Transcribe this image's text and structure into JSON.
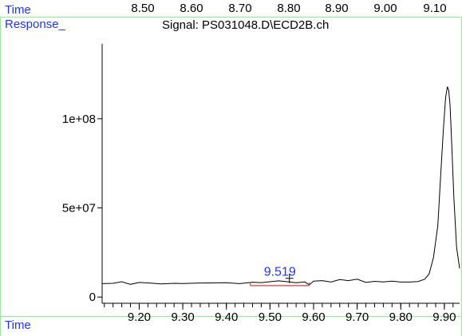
{
  "header": {
    "time_label": "Time",
    "response_label": "Response_",
    "top_time_ticks": [
      "8.50",
      "8.60",
      "8.70",
      "8.80",
      "8.90",
      "9.00",
      "9.10"
    ]
  },
  "footer": {
    "time_label": "Time"
  },
  "chart_data": {
    "type": "line",
    "title": "Signal: PS031048.D\\ECD2B.ch",
    "xlabel": "Time",
    "ylabel": "Response_",
    "xlim": [
      9.115,
      9.935
    ],
    "ylim": [
      -3500000,
      142000000
    ],
    "x_ticks": [
      9.2,
      9.3,
      9.4,
      9.5,
      9.6,
      9.7,
      9.8,
      9.9
    ],
    "x_tick_labels": [
      "9.20",
      "9.30",
      "9.40",
      "9.50",
      "9.60",
      "9.70",
      "9.80",
      "9.90"
    ],
    "y_ticks": [
      0,
      50000000,
      100000000
    ],
    "y_tick_labels": [
      "0",
      "5e+07",
      "1e+08"
    ],
    "series": [
      {
        "color": "#000000",
        "x": [
          9.115,
          9.14,
          9.16,
          9.18,
          9.2,
          9.22,
          9.25,
          9.28,
          9.3,
          9.33,
          9.36,
          9.4,
          9.43,
          9.46,
          9.48,
          9.5,
          9.52,
          9.54,
          9.56,
          9.58,
          9.59,
          9.6,
          9.62,
          9.64,
          9.66,
          9.68,
          9.7,
          9.72,
          9.74,
          9.76,
          9.78,
          9.8,
          9.82,
          9.84,
          9.855,
          9.865,
          9.875,
          9.885,
          9.892,
          9.898,
          9.903,
          9.907,
          9.91,
          9.913,
          9.917,
          9.922,
          9.928,
          9.935
        ],
        "y": [
          7500000,
          7700000,
          8600000,
          7100000,
          8200000,
          7900000,
          7400000,
          7700000,
          7600000,
          7800000,
          7900000,
          8000000,
          7500000,
          8300000,
          8100000,
          8600000,
          9100000,
          8600000,
          8000000,
          8500000,
          6800000,
          8900000,
          9200000,
          8400000,
          9800000,
          9200000,
          10000000,
          8200000,
          8800000,
          8500000,
          8900000,
          8400000,
          8400000,
          8700000,
          10000000,
          13000000,
          22000000,
          40000000,
          70000000,
          95000000,
          112000000,
          118000000,
          116000000,
          108000000,
          85000000,
          55000000,
          28000000,
          16000000
        ]
      }
    ],
    "annotations": [
      {
        "label": "9.519",
        "x": 9.519,
        "color": "#1f35ff",
        "integration_start": 9.455,
        "integration_end": 9.59
      }
    ]
  }
}
